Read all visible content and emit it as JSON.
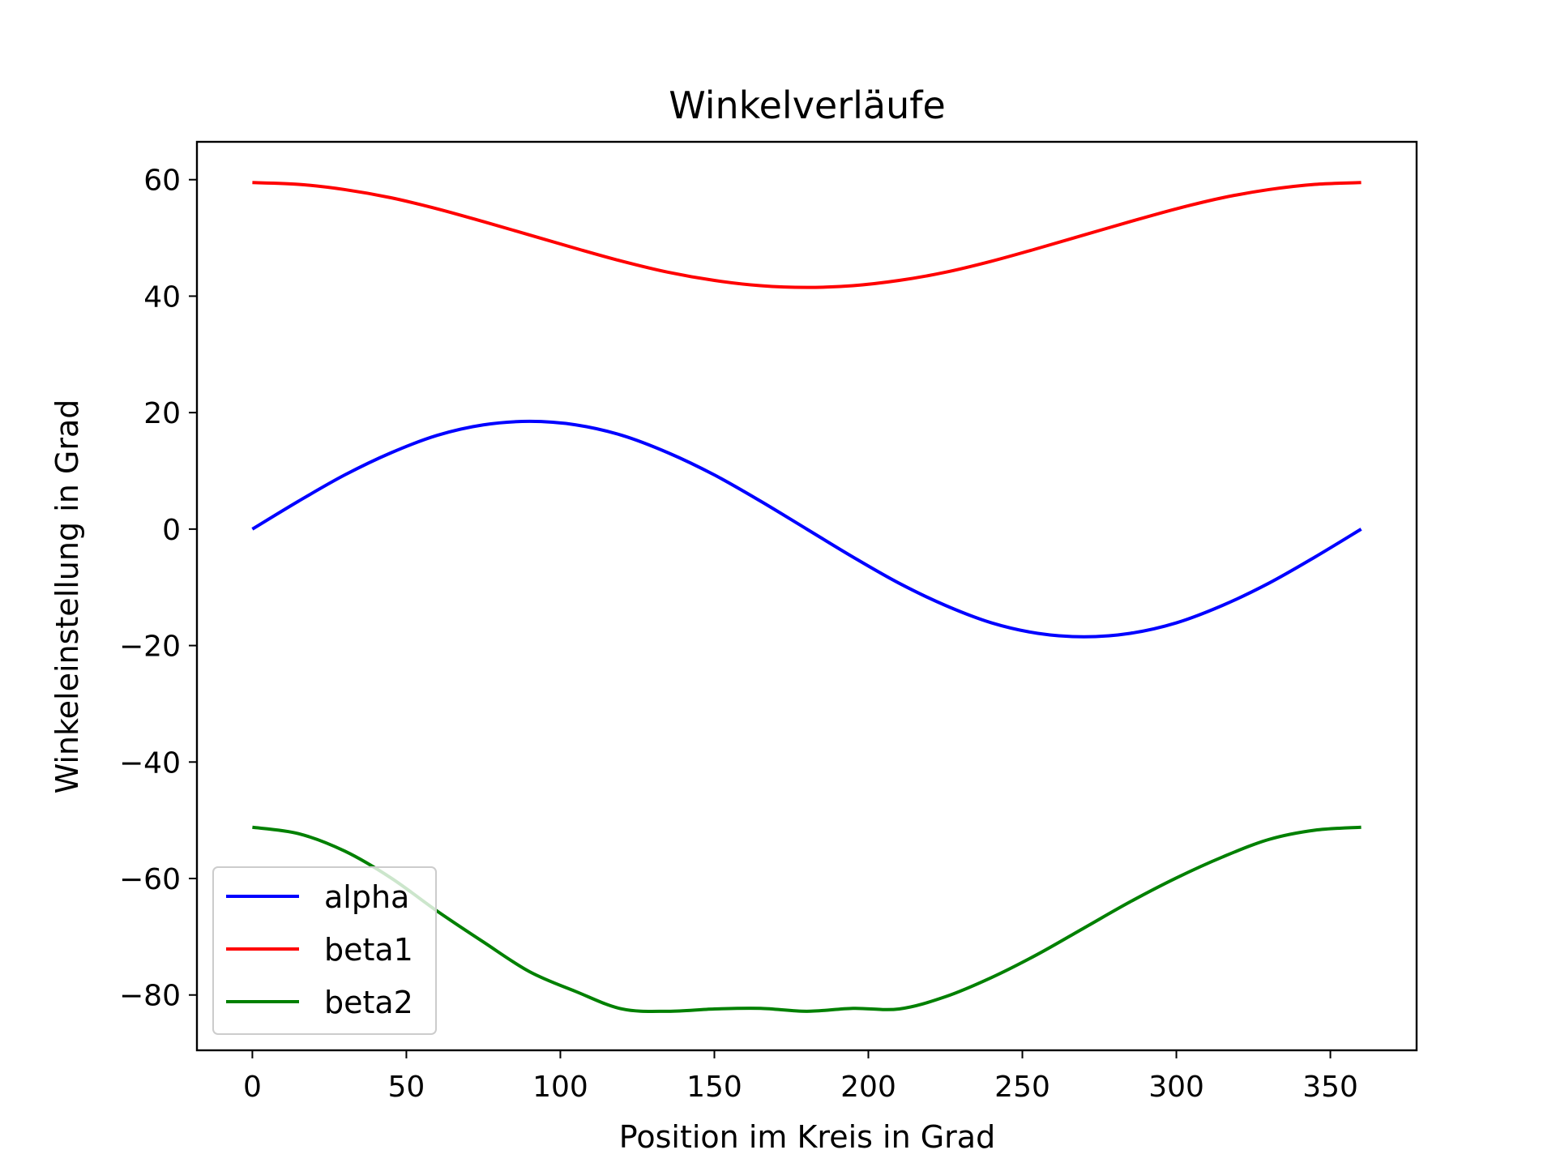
{
  "chart_data": {
    "type": "line",
    "title": "Winkelverläufe",
    "xlabel": "Position im Kreis in Grad",
    "ylabel": "Winkeleinstellung in Grad",
    "xlim": [
      -18,
      378
    ],
    "ylim": [
      -89.5,
      66.5
    ],
    "xticks": [
      0,
      50,
      100,
      150,
      200,
      250,
      300,
      350
    ],
    "yticks": [
      60,
      40,
      20,
      0,
      -20,
      -40,
      -60,
      -80
    ],
    "ytick_labels": [
      "60",
      "40",
      "20",
      "0",
      "−20",
      "−40",
      "−60",
      "−80"
    ],
    "x": [
      0,
      15,
      30,
      45,
      60,
      75,
      90,
      105,
      120,
      135,
      150,
      165,
      180,
      195,
      210,
      225,
      240,
      255,
      270,
      285,
      300,
      315,
      330,
      345,
      360
    ],
    "series": [
      {
        "name": "alpha",
        "color": "#0000ff",
        "values": [
          0.0,
          4.8,
          9.3,
          13.1,
          16.1,
          17.9,
          18.5,
          17.9,
          16.1,
          13.1,
          9.3,
          4.8,
          0.0,
          -4.8,
          -9.3,
          -13.1,
          -16.1,
          -17.9,
          -18.5,
          -17.9,
          -16.1,
          -13.1,
          -9.3,
          -4.8,
          0.0
        ]
      },
      {
        "name": "beta1",
        "color": "#ff0000",
        "values": [
          59.5,
          59.2,
          58.3,
          56.9,
          55.0,
          52.8,
          50.5,
          48.2,
          46.0,
          44.1,
          42.7,
          41.8,
          41.5,
          41.8,
          42.7,
          44.1,
          46.0,
          48.2,
          50.5,
          52.8,
          55.0,
          56.9,
          58.3,
          59.2,
          59.5
        ]
      },
      {
        "name": "beta2",
        "color": "#008000",
        "values": [
          -51.2,
          -52.3,
          -55.3,
          -59.9,
          -65.6,
          -70.9,
          -76.0,
          -79.4,
          -82.4,
          -82.8,
          -82.4,
          -82.3,
          -82.8,
          -82.3,
          -82.4,
          -80.3,
          -77.0,
          -73.0,
          -68.5,
          -64.0,
          -59.9,
          -56.3,
          -53.3,
          -51.7,
          -51.2
        ]
      }
    ],
    "legend": {
      "position": "lower-left",
      "entries": [
        "alpha",
        "beta1",
        "beta2"
      ]
    },
    "grid": false
  }
}
